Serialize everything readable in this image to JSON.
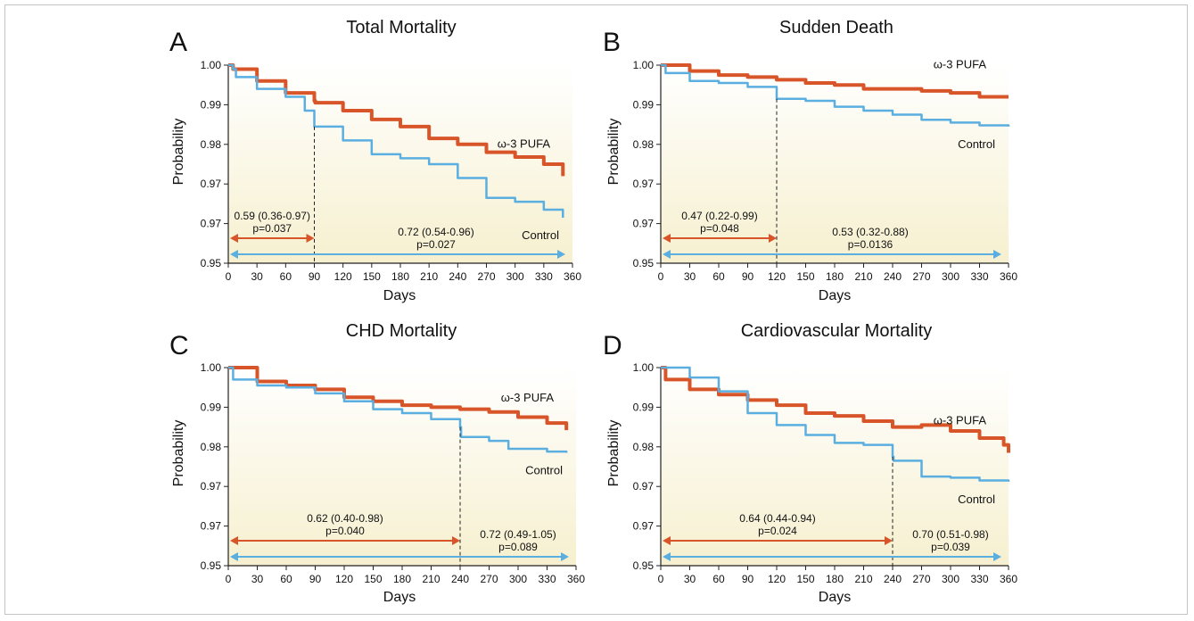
{
  "colors": {
    "omega3": "#D8552A",
    "control": "#5AAEE0",
    "bg_top": "#FFFFFF",
    "bg_bottom": "#F6F0CF"
  },
  "chart_data": [
    {
      "type": "line",
      "panel": "A",
      "title": "Total Mortality",
      "xlabel": "Days",
      "ylabel": "Probability",
      "xlim": [
        0,
        360
      ],
      "ylim_labels": [
        "1.00",
        "0.99",
        "0.98",
        "0.97",
        "0.97",
        "0.95"
      ],
      "xticks": [
        0,
        30,
        60,
        90,
        120,
        150,
        180,
        210,
        240,
        270,
        300,
        330,
        360
      ],
      "cutoff_day": 90,
      "series": [
        {
          "name": "ω-3 PUFA",
          "x": [
            0,
            5,
            30,
            60,
            90,
            91,
            120,
            150,
            180,
            210,
            240,
            270,
            300,
            330,
            350
          ],
          "y": [
            1.0,
            0.999,
            0.996,
            0.993,
            0.991,
            0.9905,
            0.9885,
            0.9863,
            0.9845,
            0.9815,
            0.98,
            0.978,
            0.9768,
            0.975,
            0.972
          ]
        },
        {
          "name": "Control",
          "x": [
            0,
            5,
            8,
            30,
            60,
            80,
            90,
            120,
            150,
            180,
            210,
            240,
            270,
            300,
            330,
            350
          ],
          "y": [
            1.0,
            0.999,
            0.997,
            0.994,
            0.992,
            0.9885,
            0.9845,
            0.981,
            0.9775,
            0.9765,
            0.975,
            0.9715,
            0.9665,
            0.9655,
            0.9635,
            0.9615
          ]
        }
      ],
      "annotations": [
        {
          "label": "0.59 (0.36-0.97)",
          "p": "p=0.037",
          "from": 0,
          "to": 90,
          "series": "ω-3 PUFA"
        },
        {
          "label": "0.72 (0.54-0.96)",
          "p": "p=0.027",
          "from": 0,
          "to": 360,
          "series": "Control"
        }
      ]
    },
    {
      "type": "line",
      "panel": "B",
      "title": "Sudden Death",
      "xlabel": "Days",
      "ylabel": "Probability",
      "xlim": [
        0,
        360
      ],
      "ylim_labels": [
        "1.00",
        "0.99",
        "0.98",
        "0.97",
        "0.97",
        "0.95"
      ],
      "xticks": [
        0,
        30,
        60,
        90,
        120,
        150,
        180,
        210,
        240,
        270,
        300,
        330,
        360
      ],
      "cutoff_day": 120,
      "series": [
        {
          "name": "ω-3 PUFA",
          "x": [
            0,
            30,
            60,
            90,
            120,
            150,
            180,
            210,
            240,
            270,
            300,
            330,
            360
          ],
          "y": [
            1.0,
            0.9985,
            0.9975,
            0.997,
            0.9963,
            0.9955,
            0.995,
            0.994,
            0.994,
            0.9935,
            0.993,
            0.992,
            0.992
          ]
        },
        {
          "name": "Control",
          "x": [
            0,
            5,
            30,
            60,
            90,
            120,
            150,
            180,
            210,
            240,
            270,
            300,
            330,
            360
          ],
          "y": [
            1.0,
            0.998,
            0.996,
            0.9955,
            0.9945,
            0.9915,
            0.991,
            0.9895,
            0.9885,
            0.9875,
            0.9862,
            0.9855,
            0.9848,
            0.9845
          ]
        }
      ],
      "annotations": [
        {
          "label": "0.47 (0.22-0.99)",
          "p": "p=0.048",
          "from": 0,
          "to": 120,
          "series": "ω-3 PUFA"
        },
        {
          "label": "0.53 (0.32-0.88)",
          "p": "p=0.0136",
          "from": 0,
          "to": 360,
          "series": "Control"
        }
      ]
    },
    {
      "type": "line",
      "panel": "C",
      "title": "CHD Mortality",
      "xlabel": "Days",
      "ylabel": "Probability",
      "xlim": [
        0,
        360
      ],
      "ylim_labels": [
        "1.00",
        "0.99",
        "0.98",
        "0.97",
        "0.97",
        "0.95"
      ],
      "xticks": [
        0,
        30,
        60,
        90,
        120,
        150,
        180,
        210,
        240,
        270,
        300,
        330,
        360
      ],
      "cutoff_day": 240,
      "series": [
        {
          "name": "ω-3 PUFA",
          "x": [
            0,
            30,
            60,
            90,
            120,
            150,
            180,
            210,
            240,
            270,
            300,
            330,
            350
          ],
          "y": [
            1.0,
            0.9965,
            0.9955,
            0.9945,
            0.9925,
            0.9915,
            0.9905,
            0.99,
            0.9895,
            0.9888,
            0.9875,
            0.986,
            0.9842
          ]
        },
        {
          "name": "Control",
          "x": [
            0,
            5,
            30,
            60,
            90,
            120,
            150,
            180,
            210,
            240,
            241,
            270,
            290,
            300,
            330,
            350
          ],
          "y": [
            1.0,
            0.997,
            0.9955,
            0.995,
            0.9935,
            0.9915,
            0.9895,
            0.9885,
            0.987,
            0.985,
            0.9825,
            0.9815,
            0.9795,
            0.9795,
            0.9788,
            0.9785
          ]
        }
      ],
      "annotations": [
        {
          "label": "0.62 (0.40-0.98)",
          "p": "p=0.040",
          "from": 0,
          "to": 240,
          "series": "ω-3 PUFA"
        },
        {
          "label": "0.72 (0.49-1.05)",
          "p": "p=0.089",
          "from": 0,
          "to": 360,
          "series": "Control"
        }
      ]
    },
    {
      "type": "line",
      "panel": "D",
      "title": "Cardiovascular Mortality",
      "xlabel": "Days",
      "ylabel": "Probability",
      "xlim": [
        0,
        360
      ],
      "ylim_labels": [
        "1.00",
        "0.99",
        "0.98",
        "0.97",
        "0.97",
        "0.95"
      ],
      "xticks": [
        0,
        30,
        60,
        90,
        120,
        150,
        180,
        210,
        240,
        270,
        300,
        330,
        360
      ],
      "cutoff_day": 240,
      "series": [
        {
          "name": "ω-3 PUFA",
          "x": [
            0,
            5,
            30,
            60,
            90,
            120,
            150,
            180,
            210,
            240,
            270,
            300,
            330,
            355,
            360
          ],
          "y": [
            1.0,
            0.997,
            0.9945,
            0.9932,
            0.9918,
            0.9905,
            0.9885,
            0.9878,
            0.9865,
            0.985,
            0.9855,
            0.984,
            0.9822,
            0.9805,
            0.9785
          ]
        },
        {
          "name": "Control",
          "x": [
            0,
            30,
            60,
            90,
            120,
            150,
            180,
            210,
            240,
            241,
            270,
            300,
            330,
            360
          ],
          "y": [
            1.0,
            0.9975,
            0.994,
            0.9885,
            0.9855,
            0.983,
            0.981,
            0.9805,
            0.9775,
            0.9765,
            0.9725,
            0.9722,
            0.9715,
            0.9712
          ]
        }
      ],
      "annotations": [
        {
          "label": "0.64 (0.44-0.94)",
          "p": "p=0.024",
          "from": 0,
          "to": 240,
          "series": "ω-3 PUFA"
        },
        {
          "label": "0.70 (0.51-0.98)",
          "p": "p=0.039",
          "from": 0,
          "to": 360,
          "series": "Control"
        }
      ]
    }
  ]
}
